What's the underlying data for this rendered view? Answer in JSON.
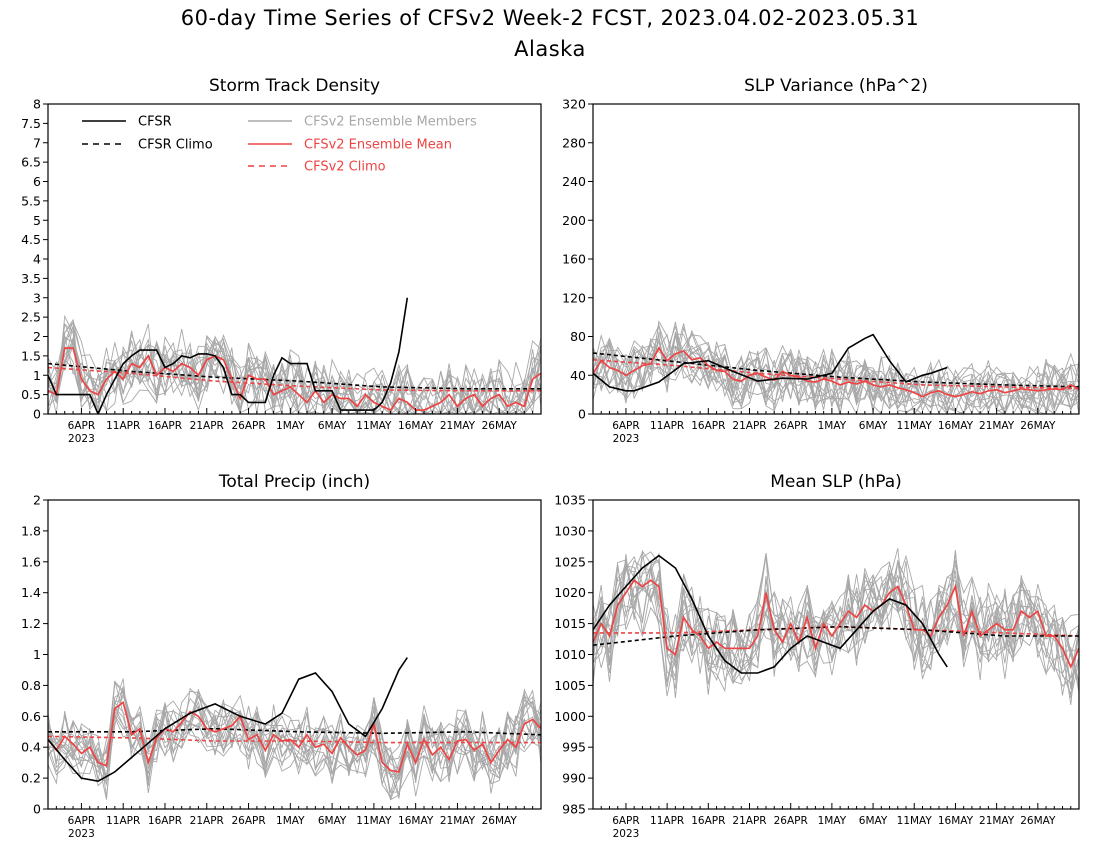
{
  "title_line1": "60-day Time Series of CFSv2 Week-2 FCST, 2023.04.02-2023.05.31",
  "title_line2": "Alaska",
  "colors": {
    "cfsr": "#000000",
    "members": "#a8a8a8",
    "mean": "#ee4444",
    "axis": "#000000"
  },
  "legend": [
    {
      "label": "CFSR",
      "series": "cfsr"
    },
    {
      "label": "CFSR Climo",
      "series": "cfsr_climo"
    },
    {
      "label": "CFSv2 Ensemble Members",
      "series": "members"
    },
    {
      "label": "CFSv2 Ensemble Mean",
      "series": "mean"
    },
    {
      "label": "CFSv2 Climo",
      "series": "cfsv2_climo"
    }
  ],
  "chart_data": [
    {
      "type": "line",
      "title": "Storm Track Density",
      "x_axis": {
        "start": "2023-04-02",
        "end": "2023-05-31",
        "tick_labels": [
          "6APR",
          "11APR",
          "16APR",
          "21APR",
          "26APR",
          "1MAY",
          "6MAY",
          "11MAY",
          "16MAY",
          "21MAY",
          "26MAY"
        ],
        "year_label": "2023"
      },
      "ylim": [
        0,
        8
      ],
      "yticks": [
        "0",
        "0.5",
        "1",
        "1.5",
        "2",
        "2.5",
        "3",
        "3.5",
        "4",
        "4.5",
        "5",
        "5.5",
        "6",
        "6.5",
        "7",
        "7.5",
        "8"
      ],
      "legend_placement": "top-left",
      "series": [
        {
          "key": "cfsr",
          "name": "CFSR",
          "style": "solid",
          "x": [
            "2023-04-02",
            "2023-04-03",
            "2023-04-07",
            "2023-04-08",
            "2023-04-09",
            "2023-04-10",
            "2023-04-11",
            "2023-04-12",
            "2023-04-13",
            "2023-04-14",
            "2023-04-15",
            "2023-04-16",
            "2023-04-17",
            "2023-04-18",
            "2023-04-19",
            "2023-04-20",
            "2023-04-21",
            "2023-04-22",
            "2023-04-23",
            "2023-04-24",
            "2023-04-25",
            "2023-04-26",
            "2023-04-27",
            "2023-04-28",
            "2023-04-29",
            "2023-04-30",
            "2023-05-01",
            "2023-05-02",
            "2023-05-03",
            "2023-05-04",
            "2023-05-05",
            "2023-05-06",
            "2023-05-07",
            "2023-05-08",
            "2023-05-09",
            "2023-05-10",
            "2023-05-11",
            "2023-05-12",
            "2023-05-13",
            "2023-05-14",
            "2023-05-15"
          ],
          "values": [
            1.0,
            0.5,
            0.5,
            0.0,
            0.5,
            0.9,
            1.3,
            1.5,
            1.65,
            1.65,
            1.65,
            1.2,
            1.3,
            1.5,
            1.45,
            1.55,
            1.55,
            1.5,
            1.2,
            0.5,
            0.5,
            0.3,
            0.3,
            0.3,
            1.0,
            1.45,
            1.3,
            1.3,
            1.3,
            0.6,
            0.6,
            0.6,
            0.1,
            0.1,
            0.1,
            0.1,
            0.1,
            0.3,
            0.8,
            1.6,
            3.0
          ]
        },
        {
          "key": "cfsr_climo",
          "name": "CFSR Climo",
          "style": "dashed",
          "x": [
            "2023-04-02",
            "2023-04-12",
            "2023-04-22",
            "2023-05-02",
            "2023-05-12",
            "2023-05-22",
            "2023-05-31"
          ],
          "values": [
            1.3,
            1.1,
            0.95,
            0.85,
            0.7,
            0.65,
            0.65
          ]
        },
        {
          "key": "cfsv2_climo",
          "name": "CFSv2 Climo",
          "style": "dashed",
          "x": [
            "2023-04-02",
            "2023-04-12",
            "2023-04-22",
            "2023-05-02",
            "2023-05-12",
            "2023-05-22",
            "2023-05-31"
          ],
          "values": [
            1.2,
            1.05,
            0.85,
            0.72,
            0.62,
            0.6,
            0.6
          ]
        },
        {
          "key": "mean",
          "name": "CFSv2 Ensemble Mean",
          "style": "solid",
          "x0": "2023-04-02",
          "values": [
            0.6,
            0.5,
            1.7,
            1.7,
            0.9,
            0.6,
            0.5,
            0.9,
            1.1,
            0.9,
            1.3,
            1.2,
            1.5,
            1.0,
            1.2,
            1.1,
            1.3,
            1.2,
            1.0,
            1.4,
            1.5,
            1.4,
            0.9,
            0.4,
            1.0,
            0.9,
            0.9,
            0.5,
            0.6,
            0.7,
            0.5,
            0.3,
            0.6,
            0.3,
            0.5,
            0.4,
            0.4,
            0.2,
            0.5,
            0.3,
            0.2,
            0.1,
            0.4,
            0.3,
            0.1,
            0.1,
            0.2,
            0.3,
            0.5,
            0.2,
            0.4,
            0.5,
            0.2,
            0.4,
            0.5,
            0.2,
            0.3,
            0.2,
            0.9,
            1.05
          ]
        },
        {
          "key": "members",
          "name": "CFSv2 Ensemble Members",
          "style": "solid",
          "generated": {
            "count": 16,
            "center": "mean",
            "spread": 0.9,
            "min": 0
          }
        }
      ]
    },
    {
      "type": "line",
      "title": "SLP Variance (hPa^2)",
      "x_axis": {
        "start": "2023-04-02",
        "end": "2023-05-31",
        "tick_labels": [
          "6APR",
          "11APR",
          "16APR",
          "21APR",
          "26APR",
          "1MAY",
          "6MAY",
          "11MAY",
          "16MAY",
          "21MAY",
          "26MAY"
        ],
        "year_label": "2023"
      },
      "ylim": [
        0,
        320
      ],
      "yticks": [
        "0",
        "40",
        "80",
        "120",
        "160",
        "200",
        "240",
        "280",
        "320"
      ],
      "series": [
        {
          "key": "cfsr",
          "name": "CFSR",
          "style": "solid",
          "x": [
            "2023-04-02",
            "2023-04-04",
            "2023-04-06",
            "2023-04-07",
            "2023-04-10",
            "2023-04-13",
            "2023-04-16",
            "2023-04-19",
            "2023-04-22",
            "2023-04-25",
            "2023-04-28",
            "2023-05-01",
            "2023-05-03",
            "2023-05-05",
            "2023-05-06",
            "2023-05-08",
            "2023-05-10",
            "2023-05-12",
            "2023-05-13",
            "2023-05-15"
          ],
          "values": [
            42,
            28,
            24,
            24,
            33,
            52,
            55,
            44,
            34,
            37,
            36,
            42,
            68,
            78,
            82,
            55,
            33,
            40,
            42,
            48
          ]
        },
        {
          "key": "cfsr_climo",
          "name": "CFSR Climo",
          "style": "dashed",
          "x": [
            "2023-04-02",
            "2023-04-12",
            "2023-04-22",
            "2023-05-02",
            "2023-05-12",
            "2023-05-22",
            "2023-05-31"
          ],
          "values": [
            63,
            54,
            45,
            38,
            33,
            30,
            28
          ]
        },
        {
          "key": "cfsv2_climo",
          "name": "CFSv2 Climo",
          "style": "dashed",
          "x": [
            "2023-04-02",
            "2023-04-12",
            "2023-04-22",
            "2023-05-02",
            "2023-05-12",
            "2023-05-22",
            "2023-05-31"
          ],
          "values": [
            56,
            50,
            42,
            36,
            30,
            28,
            26
          ]
        },
        {
          "key": "mean",
          "name": "CFSv2 Ensemble Mean",
          "style": "solid",
          "x0": "2023-04-02",
          "values": [
            42,
            55,
            48,
            45,
            40,
            45,
            50,
            52,
            68,
            55,
            62,
            65,
            56,
            58,
            50,
            45,
            44,
            36,
            34,
            40,
            42,
            38,
            35,
            44,
            40,
            38,
            34,
            33,
            36,
            34,
            30,
            33,
            31,
            34,
            30,
            28,
            30,
            27,
            25,
            22,
            18,
            22,
            24,
            20,
            18,
            20,
            23,
            21,
            24,
            25,
            22,
            24,
            26,
            25,
            24,
            25,
            26,
            25,
            30,
            26
          ]
        },
        {
          "key": "members",
          "name": "CFSv2 Ensemble Members",
          "style": "solid",
          "generated": {
            "count": 16,
            "center": "mean",
            "spread": 30,
            "min": 0
          }
        }
      ]
    },
    {
      "type": "line",
      "title": "Total Precip (inch)",
      "x_axis": {
        "start": "2023-04-02",
        "end": "2023-05-31",
        "tick_labels": [
          "6APR",
          "11APR",
          "16APR",
          "21APR",
          "26APR",
          "1MAY",
          "6MAY",
          "11MAY",
          "16MAY",
          "21MAY",
          "26MAY"
        ],
        "year_label": "2023"
      },
      "ylim": [
        0,
        2
      ],
      "yticks": [
        "0",
        "0.2",
        "0.4",
        "0.6",
        "0.8",
        "1",
        "1.2",
        "1.4",
        "1.6",
        "1.8",
        "2"
      ],
      "series": [
        {
          "key": "cfsr",
          "name": "CFSR",
          "style": "solid",
          "x": [
            "2023-04-02",
            "2023-04-04",
            "2023-04-06",
            "2023-04-08",
            "2023-04-10",
            "2023-04-13",
            "2023-04-16",
            "2023-04-19",
            "2023-04-22",
            "2023-04-25",
            "2023-04-28",
            "2023-04-30",
            "2023-05-02",
            "2023-05-04",
            "2023-05-06",
            "2023-05-08",
            "2023-05-10",
            "2023-05-12",
            "2023-05-14",
            "2023-05-15"
          ],
          "values": [
            0.45,
            0.32,
            0.2,
            0.18,
            0.24,
            0.38,
            0.52,
            0.62,
            0.68,
            0.6,
            0.55,
            0.62,
            0.84,
            0.88,
            0.76,
            0.55,
            0.47,
            0.65,
            0.9,
            0.98
          ]
        },
        {
          "key": "cfsr_climo",
          "name": "CFSR Climo",
          "style": "dashed",
          "x": [
            "2023-04-02",
            "2023-04-12",
            "2023-04-22",
            "2023-05-02",
            "2023-05-12",
            "2023-05-22",
            "2023-05-31"
          ],
          "values": [
            0.5,
            0.5,
            0.52,
            0.5,
            0.49,
            0.5,
            0.48
          ]
        },
        {
          "key": "cfsv2_climo",
          "name": "CFSv2 Climo",
          "style": "dashed",
          "x": [
            "2023-04-02",
            "2023-04-12",
            "2023-04-22",
            "2023-05-02",
            "2023-05-12",
            "2023-05-22",
            "2023-05-31"
          ],
          "values": [
            0.47,
            0.46,
            0.44,
            0.44,
            0.43,
            0.43,
            0.43
          ]
        },
        {
          "key": "mean",
          "name": "CFSv2 Ensemble Mean",
          "style": "solid",
          "x0": "2023-04-02",
          "values": [
            0.45,
            0.38,
            0.47,
            0.42,
            0.36,
            0.4,
            0.3,
            0.28,
            0.65,
            0.69,
            0.48,
            0.52,
            0.3,
            0.46,
            0.52,
            0.5,
            0.56,
            0.63,
            0.6,
            0.52,
            0.5,
            0.52,
            0.54,
            0.6,
            0.45,
            0.48,
            0.38,
            0.48,
            0.44,
            0.45,
            0.4,
            0.48,
            0.4,
            0.42,
            0.36,
            0.46,
            0.4,
            0.35,
            0.38,
            0.55,
            0.3,
            0.25,
            0.24,
            0.42,
            0.3,
            0.45,
            0.35,
            0.4,
            0.32,
            0.44,
            0.45,
            0.38,
            0.42,
            0.3,
            0.38,
            0.45,
            0.4,
            0.55,
            0.58,
            0.52
          ]
        },
        {
          "key": "members",
          "name": "CFSv2 Ensemble Members",
          "style": "solid",
          "generated": {
            "count": 16,
            "center": "mean",
            "spread": 0.2,
            "min": 0.06
          }
        }
      ]
    },
    {
      "type": "line",
      "title": "Mean SLP (hPa)",
      "x_axis": {
        "start": "2023-04-02",
        "end": "2023-05-31",
        "tick_labels": [
          "6APR",
          "11APR",
          "16APR",
          "21APR",
          "26APR",
          "1MAY",
          "6MAY",
          "11MAY",
          "16MAY",
          "21MAY",
          "26MAY"
        ],
        "year_label": "2023"
      },
      "ylim": [
        985,
        1035
      ],
      "yticks": [
        "985",
        "990",
        "995",
        "1000",
        "1005",
        "1010",
        "1015",
        "1020",
        "1025",
        "1030",
        "1035"
      ],
      "series": [
        {
          "key": "cfsr",
          "name": "CFSR",
          "style": "solid",
          "x": [
            "2023-04-02",
            "2023-04-04",
            "2023-04-06",
            "2023-04-08",
            "2023-04-10",
            "2023-04-12",
            "2023-04-14",
            "2023-04-16",
            "2023-04-18",
            "2023-04-20",
            "2023-04-22",
            "2023-04-24",
            "2023-04-26",
            "2023-04-28",
            "2023-04-30",
            "2023-05-02",
            "2023-05-04",
            "2023-05-06",
            "2023-05-08",
            "2023-05-10",
            "2023-05-12",
            "2023-05-14",
            "2023-05-15"
          ],
          "values": [
            1014,
            1018,
            1021,
            1024,
            1026,
            1024,
            1019,
            1013,
            1009,
            1007,
            1007,
            1008,
            1011,
            1013,
            1012,
            1011,
            1014,
            1017,
            1019,
            1018,
            1015,
            1010,
            1008
          ]
        },
        {
          "key": "cfsr_climo",
          "name": "CFSR Climo",
          "style": "dashed",
          "x": [
            "2023-04-02",
            "2023-04-12",
            "2023-04-22",
            "2023-05-02",
            "2023-05-12",
            "2023-05-22",
            "2023-05-31"
          ],
          "values": [
            1011.5,
            1013,
            1014,
            1014.5,
            1014,
            1013,
            1013
          ]
        },
        {
          "key": "cfsv2_climo",
          "name": "CFSv2 Climo",
          "style": "dashed",
          "x": [
            "2023-04-02",
            "2023-04-12",
            "2023-04-22",
            "2023-05-02",
            "2023-05-12",
            "2023-05-22",
            "2023-05-31"
          ],
          "values": [
            1013.5,
            1013.5,
            1014,
            1014.5,
            1014,
            1013.5,
            1013
          ]
        },
        {
          "key": "mean",
          "name": "CFSv2 Ensemble Mean",
          "style": "solid",
          "x0": "2023-04-02",
          "values": [
            1012,
            1015,
            1013,
            1018,
            1020,
            1022,
            1021,
            1022,
            1021,
            1011,
            1010,
            1016,
            1014,
            1013,
            1011,
            1012,
            1011,
            1011,
            1011,
            1011,
            1013,
            1020,
            1014,
            1012,
            1015,
            1012,
            1016,
            1011,
            1015,
            1013,
            1015,
            1017,
            1016,
            1018,
            1017,
            1018,
            1020,
            1021,
            1018,
            1014,
            1014,
            1013,
            1016,
            1018,
            1021,
            1013,
            1017,
            1013,
            1014,
            1015,
            1014,
            1014,
            1017,
            1016,
            1017,
            1013,
            1013,
            1011,
            1008,
            1011
          ]
        },
        {
          "key": "members",
          "name": "CFSv2 Ensemble Members",
          "style": "solid",
          "generated": {
            "count": 16,
            "center": "mean",
            "spread": 7
          }
        }
      ]
    }
  ]
}
